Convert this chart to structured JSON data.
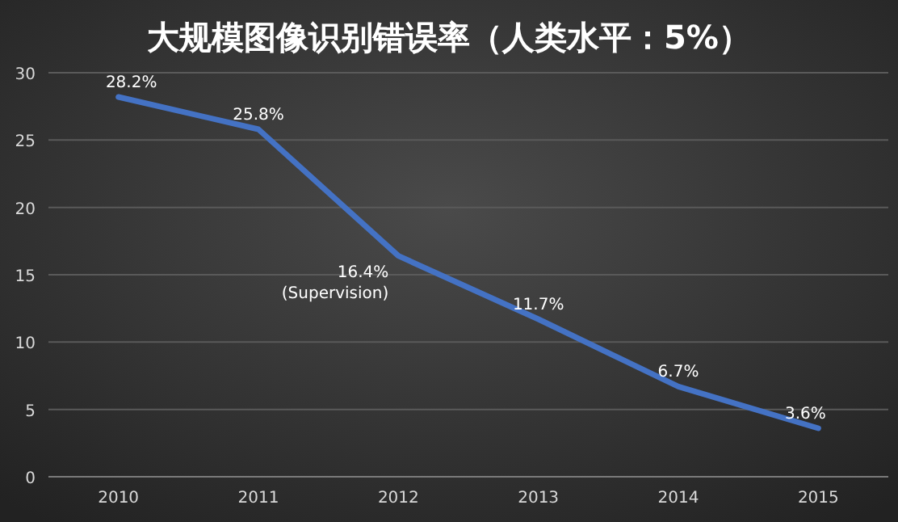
{
  "chart_data": {
    "type": "line",
    "title": "大规模图像识别错误率（人类水平：5%）",
    "categories": [
      "2010",
      "2011",
      "2012",
      "2013",
      "2014",
      "2015"
    ],
    "series": [
      {
        "color": "#4472c4",
        "values": [
          28.2,
          25.8,
          16.4,
          11.7,
          6.7,
          3.6
        ],
        "value_labels": [
          "28.2%",
          "25.8%",
          "16.4%\n(Supervision)",
          "11.7%",
          "6.7%",
          "3.6%"
        ]
      }
    ],
    "ylim": [
      0,
      30
    ],
    "yticks": [
      0,
      5,
      10,
      15,
      20,
      25,
      30
    ],
    "grid": "y"
  }
}
